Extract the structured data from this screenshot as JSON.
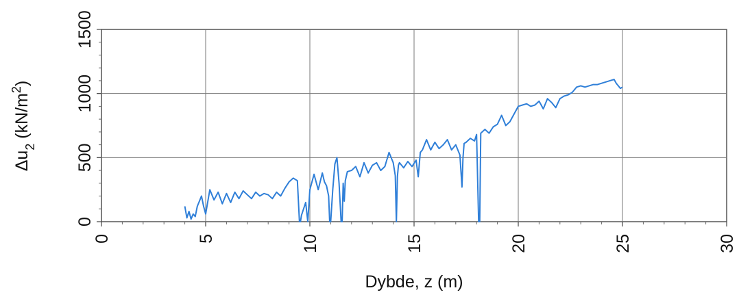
{
  "chart_data": {
    "type": "line",
    "xlabel": "Dybde, z (m)",
    "ylabel": {
      "prefix": "Δu",
      "subscript": "2",
      "unit_prefix": " (kN/m",
      "superscript": "2",
      "unit_suffix": ")"
    },
    "xlim": [
      0,
      30
    ],
    "ylim": [
      0,
      1500
    ],
    "x_ticks": [
      0,
      5,
      10,
      15,
      20,
      25,
      30
    ],
    "y_ticks": [
      0,
      500,
      1000,
      1500
    ],
    "x_tick_labels": [
      "0",
      "5",
      "10",
      "15",
      "20",
      "25",
      "30"
    ],
    "y_tick_labels": [
      "0",
      "500",
      "1000",
      "1500"
    ],
    "grid": true,
    "line_color": "#2f7fd8",
    "series": [
      {
        "x": [
          4.0,
          4.1,
          4.2,
          4.3,
          4.4,
          4.5,
          4.6,
          4.7,
          4.8,
          4.9,
          5.0,
          5.2,
          5.4,
          5.6,
          5.8,
          6.0,
          6.2,
          6.4,
          6.6,
          6.8,
          7.0,
          7.2,
          7.4,
          7.6,
          7.8,
          8.0,
          8.2,
          8.4,
          8.6,
          8.8,
          9.0,
          9.2,
          9.4,
          9.5,
          9.55,
          9.6,
          9.8,
          9.9,
          10.0,
          10.2,
          10.4,
          10.6,
          10.7,
          10.8,
          10.9,
          10.95,
          11.0,
          11.1,
          11.2,
          11.3,
          11.4,
          11.5,
          11.55,
          11.6,
          11.65,
          11.7,
          11.8,
          12.0,
          12.2,
          12.4,
          12.6,
          12.8,
          13.0,
          13.2,
          13.4,
          13.6,
          13.8,
          14.0,
          14.1,
          14.15,
          14.2,
          14.25,
          14.3,
          14.5,
          14.7,
          14.9,
          15.1,
          15.2,
          15.3,
          15.4,
          15.6,
          15.8,
          16.0,
          16.2,
          16.4,
          16.6,
          16.8,
          17.0,
          17.2,
          17.3,
          17.35,
          17.4,
          17.5,
          17.7,
          17.9,
          18.0,
          18.1,
          18.15,
          18.2,
          18.4,
          18.6,
          18.8,
          19.0,
          19.2,
          19.4,
          19.6,
          19.8,
          20.0,
          20.2,
          20.4,
          20.6,
          20.8,
          21.0,
          21.2,
          21.4,
          21.6,
          21.8,
          22.0,
          22.2,
          22.4,
          22.6,
          22.8,
          23.0,
          23.2,
          23.4,
          23.6,
          23.8,
          24.0,
          24.2,
          24.4,
          24.6,
          24.7,
          24.8,
          24.9,
          25.0
        ],
        "y": [
          120,
          30,
          80,
          20,
          60,
          40,
          120,
          160,
          200,
          120,
          60,
          250,
          170,
          230,
          140,
          220,
          150,
          230,
          180,
          240,
          210,
          180,
          230,
          200,
          220,
          210,
          180,
          230,
          200,
          260,
          310,
          340,
          320,
          0,
          0,
          50,
          150,
          0,
          250,
          370,
          250,
          380,
          310,
          280,
          200,
          0,
          0,
          250,
          450,
          500,
          300,
          0,
          0,
          300,
          160,
          320,
          390,
          400,
          430,
          350,
          460,
          380,
          440,
          460,
          400,
          430,
          540,
          460,
          360,
          0,
          350,
          440,
          460,
          420,
          470,
          430,
          480,
          350,
          540,
          560,
          640,
          560,
          620,
          570,
          600,
          640,
          560,
          600,
          520,
          270,
          500,
          610,
          620,
          650,
          630,
          680,
          0,
          0,
          690,
          720,
          690,
          740,
          760,
          830,
          750,
          780,
          840,
          900,
          910,
          920,
          900,
          910,
          940,
          880,
          960,
          930,
          890,
          960,
          980,
          990,
          1010,
          1050,
          1060,
          1050,
          1060,
          1070,
          1070,
          1080,
          1090,
          1100,
          1110,
          1080,
          1060,
          1040,
          1050
        ]
      }
    ]
  }
}
